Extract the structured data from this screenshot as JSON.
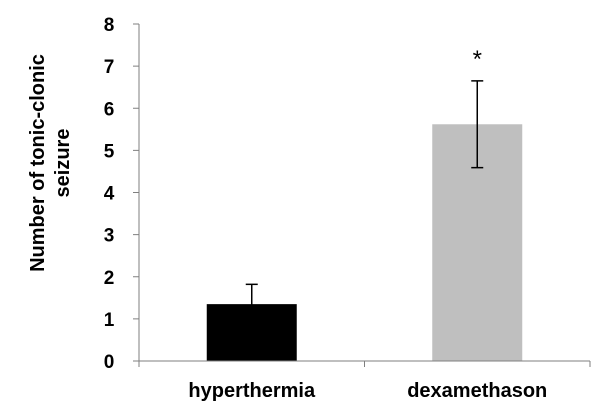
{
  "chart_data": {
    "type": "bar",
    "ylabel": "Number of tonic-clonic seizure",
    "ylabel_lines": [
      "Number of tonic-clonic",
      "seizure"
    ],
    "xlabel": "",
    "ylim": [
      0,
      8
    ],
    "yticks": [
      "0",
      "1",
      "2",
      "3",
      "4",
      "5",
      "6",
      "7",
      "8"
    ],
    "categories": [
      "hyperthermia",
      "dexamethason"
    ],
    "values": [
      1.35,
      5.62
    ],
    "error": [
      0.47,
      1.03
    ],
    "annotations": [
      "",
      "*"
    ],
    "colors": [
      "#000000",
      "#bfbfbf"
    ],
    "grid": false,
    "legend": "none"
  }
}
